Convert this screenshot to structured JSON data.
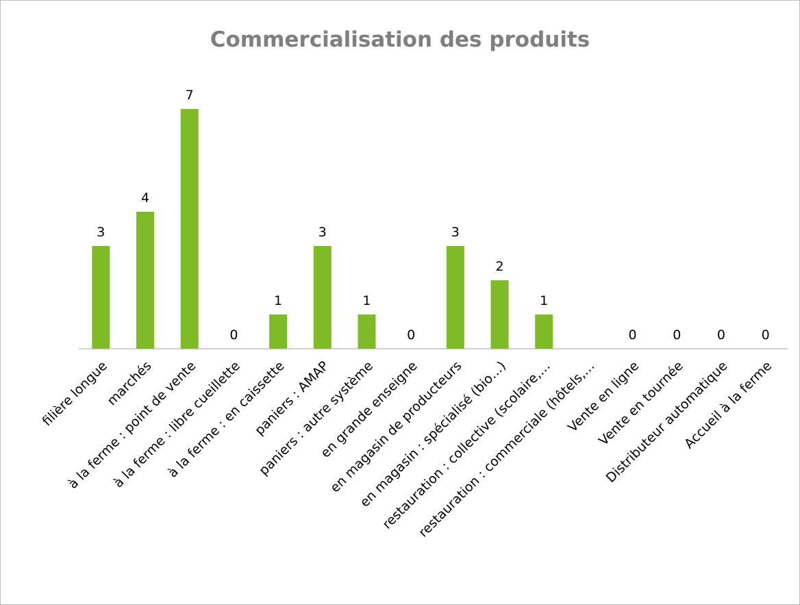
{
  "chart_data": {
    "type": "bar",
    "title": "Commercialisation des produits",
    "categories": [
      "filière longue",
      "marchés",
      "à la ferme : point de vente",
      "à la ferme : libre cueillette",
      "à la ferme : en caissette",
      "paniers : AMAP",
      "paniers : autre système",
      "en grande enseigne",
      "en magasin de producteurs",
      "en magasin : spécialisé (bio…)",
      "restauration : collective (scolaire,…",
      "restauration : commerciale  (hôtels,…",
      "Vente en ligne",
      "Vente en tournée",
      "Distributeur automatique",
      "Accueil à la ferme"
    ],
    "values": [
      3,
      4,
      7,
      0,
      1,
      3,
      1,
      0,
      3,
      2,
      1,
      null,
      0,
      0,
      0,
      0
    ],
    "color": "#7fba27",
    "ylim": [
      0,
      7
    ]
  }
}
